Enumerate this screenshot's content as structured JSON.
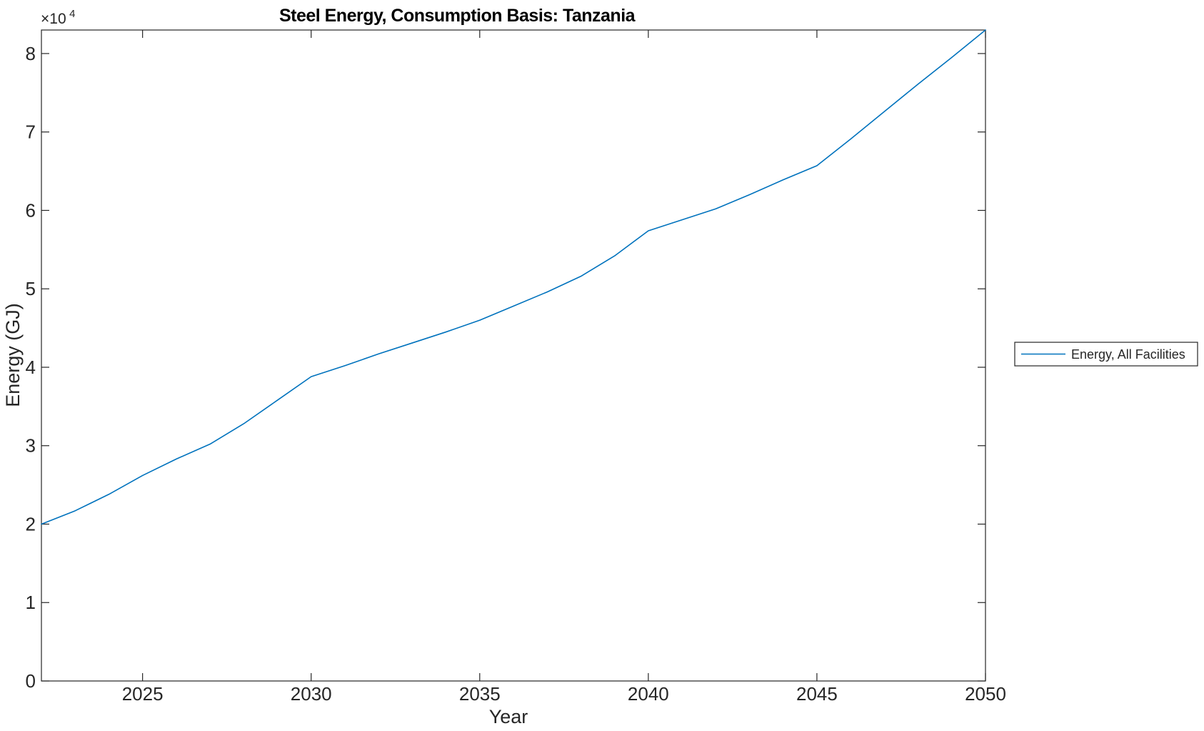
{
  "figure": {
    "background_color": "#ffffff",
    "axis_color": "#262626",
    "title_color": "#000000"
  },
  "chart_data": {
    "type": "line",
    "title": "Steel Energy, Consumption Basis: Tanzania",
    "xlabel": "Year",
    "ylabel": "Energy (GJ)",
    "y_axis_multiplier": {
      "base": "×10",
      "exponent": "4"
    },
    "grid": false,
    "box": true,
    "tick_direction": "in",
    "xlim": [
      2022,
      2050
    ],
    "ylim": [
      0,
      83000
    ],
    "x_ticks": {
      "values": [
        2025,
        2030,
        2035,
        2040,
        2045,
        2050
      ],
      "labels": [
        "2025",
        "2030",
        "2035",
        "2040",
        "2045",
        "2050"
      ]
    },
    "y_ticks": {
      "values": [
        0,
        10000,
        20000,
        30000,
        40000,
        50000,
        60000,
        70000,
        80000
      ],
      "labels": [
        "0",
        "1",
        "2",
        "3",
        "4",
        "5",
        "6",
        "7",
        "8"
      ]
    },
    "x": [
      2022,
      2023,
      2024,
      2025,
      2026,
      2027,
      2028,
      2029,
      2030,
      2031,
      2032,
      2033,
      2034,
      2035,
      2036,
      2037,
      2038,
      2039,
      2040,
      2041,
      2042,
      2043,
      2044,
      2045,
      2046,
      2047,
      2048,
      2049,
      2050
    ],
    "series": [
      {
        "name": "Energy, All Facilities",
        "color": "#0072BD",
        "line_width": 1.6,
        "values": [
          20000,
          21700,
          23800,
          26200,
          28300,
          30200,
          32800,
          35800,
          38800,
          40200,
          41700,
          43100,
          44500,
          46000,
          47800,
          49600,
          51600,
          54200,
          57400,
          58800,
          60200,
          62000,
          63900,
          65700,
          69100,
          72600,
          76100,
          79500,
          83000
        ]
      }
    ],
    "legend": {
      "position": "right-outside",
      "entries": [
        "Energy, All Facilities"
      ]
    }
  },
  "legend": {
    "entry_label": "Energy, All Facilities"
  }
}
